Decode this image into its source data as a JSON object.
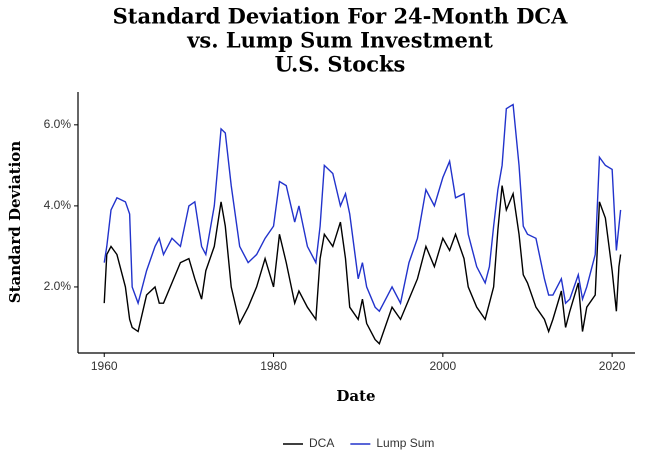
{
  "chart_data": {
    "type": "line",
    "title": [
      "Standard Deviation For 24-Month DCA",
      "vs. Lump Sum Investment",
      "U.S. Stocks"
    ],
    "x_label": "Date",
    "y_label": "Standard Deviation",
    "x": [
      1960,
      1960.3,
      1960.8,
      1961.5,
      1962.5,
      1963.0,
      1963.3,
      1964,
      1965,
      1966,
      1966.5,
      1967,
      1968,
      1969,
      1970,
      1970.7,
      1971.5,
      1972,
      1973,
      1973.8,
      1974.3,
      1975,
      1976,
      1977,
      1978,
      1979,
      1980,
      1980.7,
      1981.5,
      1982.5,
      1983,
      1984,
      1985,
      1985.5,
      1986,
      1987,
      1987.9,
      1988.5,
      1989,
      1990,
      1990.5,
      1991,
      1992,
      1992.5,
      1993.5,
      1994,
      1995,
      1996,
      1997,
      1998,
      1999,
      2000,
      2000.8,
      2001.5,
      2002.5,
      2003,
      2004,
      2005,
      2005.5,
      2006,
      2006.5,
      2007,
      2007.5,
      2008.3,
      2009,
      2009.5,
      2010,
      2011,
      2012,
      2012.5,
      2013,
      2014,
      2014.5,
      2015,
      2016,
      2016.5,
      2017,
      2018,
      2018.5,
      2019.2,
      2020,
      2020.5,
      2020.8,
      2021
    ],
    "series": [
      {
        "name": "DCA",
        "color": "#000000",
        "values": [
          1.6,
          2.8,
          3.0,
          2.8,
          2.0,
          1.2,
          1.0,
          0.9,
          1.8,
          2.0,
          1.6,
          1.6,
          2.1,
          2.6,
          2.7,
          2.2,
          1.7,
          2.4,
          3.0,
          4.1,
          3.5,
          2.0,
          1.1,
          1.5,
          2.0,
          2.7,
          2.0,
          3.3,
          2.6,
          1.6,
          1.9,
          1.5,
          1.2,
          2.7,
          3.3,
          3.0,
          3.6,
          2.7,
          1.5,
          1.2,
          1.7,
          1.1,
          0.7,
          0.6,
          1.2,
          1.5,
          1.2,
          1.7,
          2.2,
          3.0,
          2.5,
          3.2,
          2.9,
          3.3,
          2.7,
          2.0,
          1.5,
          1.2,
          1.6,
          2.0,
          3.4,
          4.5,
          3.9,
          4.3,
          3.3,
          2.3,
          2.1,
          1.5,
          1.2,
          0.9,
          1.2,
          1.9,
          1.0,
          1.4,
          2.1,
          0.9,
          1.5,
          1.8,
          4.1,
          3.7,
          2.4,
          1.4,
          2.5,
          2.8
        ]
      },
      {
        "name": "Lump Sum",
        "color": "#2233cc",
        "values": [
          2.6,
          3.0,
          3.9,
          4.2,
          4.1,
          3.8,
          2.0,
          1.6,
          2.4,
          3.0,
          3.2,
          2.8,
          3.2,
          3.0,
          4.0,
          4.1,
          3.0,
          2.8,
          4.0,
          5.9,
          5.8,
          4.5,
          3.0,
          2.6,
          2.8,
          3.2,
          3.5,
          4.6,
          4.5,
          3.6,
          4.0,
          3.0,
          2.6,
          3.5,
          5.0,
          4.8,
          4.0,
          4.3,
          3.8,
          2.2,
          2.6,
          2.0,
          1.5,
          1.4,
          1.8,
          2.0,
          1.6,
          2.6,
          3.2,
          4.4,
          4.0,
          4.7,
          5.1,
          4.2,
          4.3,
          3.3,
          2.5,
          2.1,
          2.5,
          3.5,
          4.4,
          5.0,
          6.4,
          6.5,
          5.0,
          3.5,
          3.3,
          3.2,
          2.2,
          1.8,
          1.8,
          2.2,
          1.6,
          1.7,
          2.3,
          1.7,
          2.0,
          2.8,
          5.2,
          5.0,
          4.9,
          2.9,
          3.5,
          3.9
        ]
      }
    ],
    "xlim": [
      1956.9,
      2022.7
    ],
    "xticks": [
      1960,
      1980,
      2000,
      2020
    ],
    "ylim": [
      0.37,
      6.81
    ],
    "yticks": [
      {
        "value": 2,
        "label": "2.0%"
      },
      {
        "value": 4,
        "label": "4.0%"
      },
      {
        "value": 6,
        "label": "6.0%"
      }
    ],
    "grid": false,
    "legend": "bottom"
  }
}
